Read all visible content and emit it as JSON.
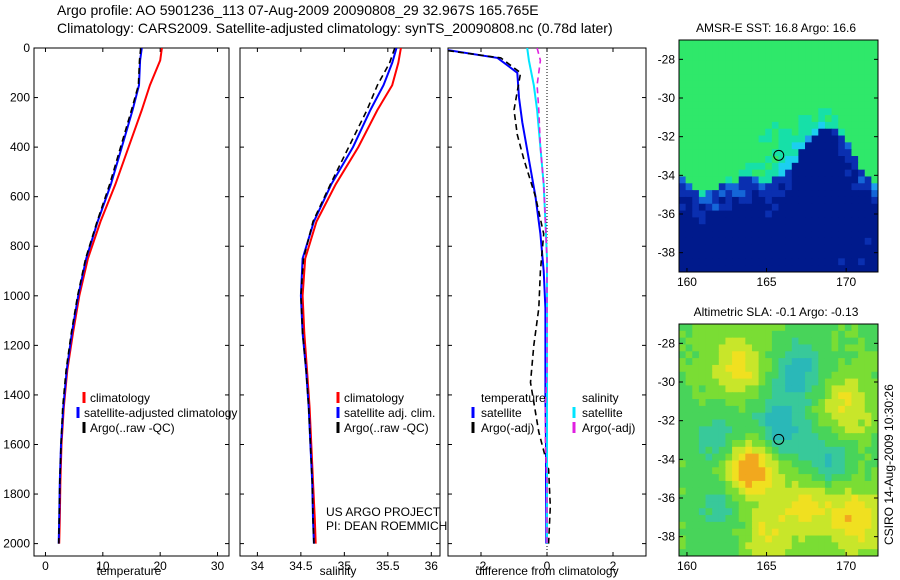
{
  "header": {
    "line1": "Argo profile: AO 5901236_113 07-Aug-2009 20090808_29 32.967S 165.765E",
    "line2": "Climatology: CARS2009. Satellite-adjusted climatology: synTS_20090808.nc (0.78d later)"
  },
  "colors": {
    "climatology": "#ff0000",
    "satellite": "#0000ff",
    "argo": "#000000",
    "satellite_salinity": "#00e5ff",
    "argo_salinity": "#e020e0"
  },
  "credits": {
    "line1": "US ARGO PROJECT",
    "line2": "PI: DEAN ROEMMICH"
  },
  "side_note": "CSIRO 14-Aug-2009 10:30:26",
  "chart_data": [
    {
      "type": "line",
      "xlabel": "temperature",
      "xlim": [
        -2,
        32
      ],
      "ylim": [
        2050,
        0
      ],
      "xticks": [
        0,
        10,
        20,
        30
      ],
      "yticks": [
        0,
        200,
        400,
        600,
        800,
        1000,
        1200,
        1400,
        1600,
        1800,
        2000
      ],
      "legend": [
        "climatology",
        "satellite-adjusted climatology",
        "Argo(..raw -QC)"
      ],
      "series": [
        {
          "name": "climatology",
          "color": "#ff0000",
          "x": [
            20.3,
            20.0,
            18.2,
            16.8,
            14.5,
            12.2,
            9.6,
            7.4,
            5.9,
            4.8,
            3.8,
            3.2,
            2.8,
            2.6,
            2.5,
            2.4
          ],
          "y": [
            0,
            50,
            150,
            250,
            400,
            550,
            700,
            850,
            1000,
            1150,
            1300,
            1450,
            1600,
            1750,
            1900,
            2000
          ]
        },
        {
          "name": "satellite-adjusted climatology",
          "color": "#0000ff",
          "x": [
            16.8,
            16.5,
            16.3,
            15.2,
            13.3,
            11.4,
            9.1,
            7.1,
            5.7,
            4.6,
            3.7,
            3.1,
            2.7,
            2.5,
            2.4,
            2.3
          ],
          "y": [
            0,
            50,
            150,
            250,
            400,
            550,
            700,
            850,
            1000,
            1150,
            1300,
            1450,
            1600,
            1750,
            1900,
            2000
          ]
        },
        {
          "name": "Argo(..raw -QC)",
          "color": "#000000",
          "x": [
            16.6,
            16.4,
            16.2,
            15.0,
            13.1,
            11.2,
            9.0,
            7.0,
            5.6,
            4.5,
            3.6,
            3.0,
            2.7,
            2.5,
            2.4,
            2.3
          ],
          "y": [
            0,
            50,
            150,
            250,
            400,
            550,
            700,
            850,
            1000,
            1150,
            1300,
            1450,
            1600,
            1750,
            1900,
            2000
          ]
        }
      ]
    },
    {
      "type": "line",
      "xlabel": "salinity",
      "xlim": [
        33.8,
        36.1
      ],
      "ylim": [
        2050,
        0
      ],
      "xticks": [
        34,
        34.5,
        35,
        35.5,
        36
      ],
      "legend": [
        "climatology",
        "satellite adj. clim.",
        "Argo(..raw -QC)"
      ],
      "series": [
        {
          "name": "climatology",
          "color": "#ff0000",
          "x": [
            35.65,
            35.62,
            35.55,
            35.38,
            35.16,
            34.9,
            34.68,
            34.55,
            34.52,
            34.54,
            34.57,
            34.6,
            34.62,
            34.64,
            34.66,
            34.67
          ],
          "y": [
            0,
            60,
            150,
            250,
            400,
            550,
            700,
            850,
            1000,
            1150,
            1300,
            1450,
            1600,
            1750,
            1900,
            2000
          ]
        },
        {
          "name": "satellite adj. clim.",
          "color": "#0000ff",
          "x": [
            35.6,
            35.55,
            35.45,
            35.3,
            35.1,
            34.85,
            34.65,
            34.52,
            34.5,
            34.52,
            34.56,
            34.59,
            34.61,
            34.63,
            34.64,
            34.65
          ],
          "y": [
            0,
            60,
            150,
            250,
            400,
            550,
            700,
            850,
            1000,
            1150,
            1300,
            1450,
            1600,
            1750,
            1900,
            2000
          ]
        },
        {
          "name": "Argo(..raw -QC)",
          "color": "#000000",
          "x": [
            35.58,
            35.52,
            35.38,
            35.26,
            35.05,
            34.84,
            34.64,
            34.53,
            34.5,
            34.52,
            34.56,
            34.59,
            34.61,
            34.63,
            34.64,
            34.65
          ],
          "y": [
            0,
            60,
            150,
            250,
            400,
            550,
            700,
            850,
            1000,
            1150,
            1300,
            1450,
            1600,
            1750,
            1900,
            2000
          ]
        }
      ]
    },
    {
      "type": "line",
      "xlabel": "difference from climatology",
      "xlim": [
        -3,
        3
      ],
      "ylim": [
        2050,
        0
      ],
      "xticks": [
        -2,
        0,
        2
      ],
      "legend_groups": [
        {
          "title": "temperature",
          "items": [
            "satellite",
            "Argo(-adj)"
          ]
        },
        {
          "title": "salinity",
          "items": [
            "satellite",
            "Argo(-adj)"
          ]
        }
      ],
      "series": [
        {
          "name": "temperature satellite",
          "color": "#0000ff",
          "x": [
            -3.4,
            -1.5,
            -0.9,
            -0.85,
            -0.75,
            -0.55,
            -0.35,
            -0.2,
            -0.1,
            -0.05,
            -0.05,
            -0.05,
            -0.03,
            -0.03,
            -0.02,
            -0.02
          ],
          "y": [
            0,
            40,
            100,
            200,
            300,
            450,
            600,
            750,
            900,
            1050,
            1200,
            1400,
            1600,
            1750,
            1900,
            2000
          ]
        },
        {
          "name": "temperature Argo(-adj)",
          "color": "#000000",
          "x": [
            -3.6,
            -1.4,
            -0.8,
            -1.0,
            -0.9,
            -0.7,
            -0.35,
            -0.1,
            -0.2,
            -0.25,
            -0.4,
            -0.5,
            -0.25,
            0.05,
            0.1,
            0.05
          ],
          "y": [
            0,
            40,
            100,
            250,
            350,
            450,
            600,
            750,
            900,
            1050,
            1200,
            1350,
            1550,
            1700,
            1850,
            2000
          ]
        },
        {
          "name": "salinity satellite",
          "color": "#00e5ff",
          "x": [
            -0.6,
            -0.55,
            -0.4,
            -0.3,
            -0.2,
            -0.1,
            -0.05,
            0.0,
            0.0,
            0.0,
            0.0,
            0.0,
            0.0,
            0.0,
            0.0,
            0.0
          ],
          "y": [
            0,
            50,
            150,
            250,
            400,
            550,
            700,
            850,
            1000,
            1150,
            1300,
            1450,
            1600,
            1750,
            1900,
            2000
          ]
        },
        {
          "name": "salinity Argo(-adj)",
          "color": "#e020e0",
          "x": [
            -0.3,
            -0.2,
            -0.3,
            -0.25,
            -0.2,
            -0.1,
            -0.05,
            0.0,
            0.0,
            0.0,
            0.0,
            -0.05,
            -0.05,
            0.0,
            0.0,
            0.0
          ],
          "y": [
            0,
            50,
            150,
            250,
            400,
            550,
            700,
            850,
            1000,
            1150,
            1300,
            1450,
            1600,
            1750,
            1900,
            2000
          ]
        }
      ]
    },
    {
      "type": "heatmap",
      "title": "AMSR-E SST: 16.8 Argo: 16.6",
      "xlim": [
        159.5,
        172
      ],
      "ylim": [
        -39,
        -27
      ],
      "xticks": [
        160,
        165,
        170
      ],
      "yticks": [
        -28,
        -30,
        -32,
        -34,
        -36,
        -38
      ],
      "marker": {
        "lon": 165.765,
        "lat": -32.967
      }
    },
    {
      "type": "heatmap",
      "title": "Altimetric SLA: -0.1 Argo: -0.13",
      "xlim": [
        159.5,
        172
      ],
      "ylim": [
        -39,
        -27
      ],
      "xticks": [
        160,
        165,
        170
      ],
      "yticks": [
        -28,
        -30,
        -32,
        -34,
        -36,
        -38
      ],
      "marker": {
        "lon": 165.765,
        "lat": -32.967
      }
    }
  ]
}
